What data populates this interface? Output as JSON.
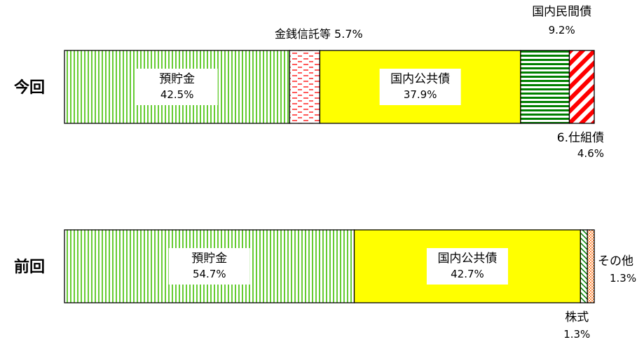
{
  "chart_data": {
    "type": "bar",
    "orientation": "horizontal",
    "stacked": true,
    "percent": true,
    "categories": [
      "今回",
      "前回"
    ],
    "series": [
      {
        "name": "預貯金",
        "values": [
          42.5,
          54.7
        ],
        "label_lines": [
          "預貯金"
        ],
        "color": "#66cc33",
        "pattern": "vertical-lines"
      },
      {
        "name": "金銭信託等",
        "values": [
          5.7,
          null
        ],
        "label_lines": [
          "金銭信託等"
        ],
        "color": "#ff0000",
        "pattern": "dashes"
      },
      {
        "name": "国内公共債",
        "values": [
          37.9,
          42.7
        ],
        "label_lines": [
          "国内公共債"
        ],
        "color": "#ffff00",
        "pattern": "solid"
      },
      {
        "name": "国内民間債",
        "values": [
          9.2,
          null
        ],
        "label_lines": [
          "国内民間債"
        ],
        "color": "#008000",
        "pattern": "horizontal-lines"
      },
      {
        "name": "仕組債",
        "values": [
          4.6,
          null
        ],
        "label_lines": [
          "6.仕組債"
        ],
        "color": "#ff0000",
        "pattern": "diagonal-stripes"
      },
      {
        "name": "株式",
        "values": [
          null,
          1.3
        ],
        "label_lines": [
          "株式"
        ],
        "color": "#008000",
        "pattern": "diagonal-lines"
      },
      {
        "name": "その他",
        "values": [
          null,
          1.3
        ],
        "label_lines": [
          "その他"
        ],
        "color": "#ff6600",
        "pattern": "dots"
      }
    ],
    "value_labels": [
      [
        "42.5%",
        "5.7%",
        "37.9%",
        "9.2%",
        "4.6%"
      ],
      [
        "54.7%",
        "42.7%",
        "1.3%",
        "1.3%"
      ]
    ],
    "xlim": [
      0,
      100
    ],
    "grid": false,
    "legend": "none"
  }
}
